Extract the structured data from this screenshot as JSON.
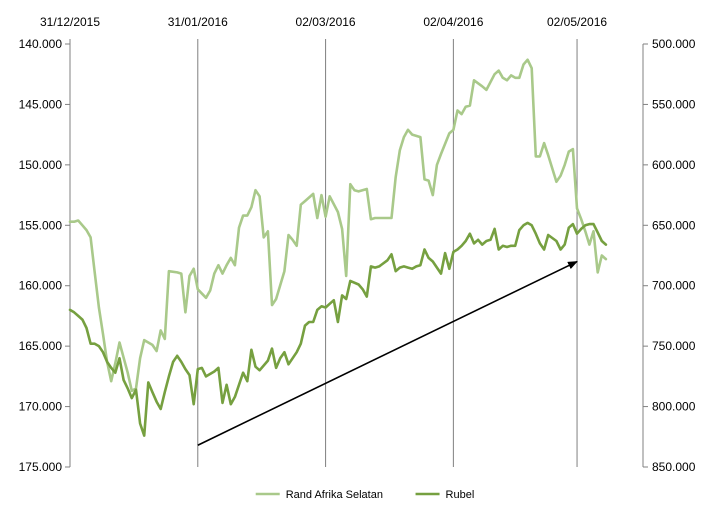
{
  "chart_data": {
    "type": "line",
    "x_tick_labels": [
      "31/12/2015",
      "31/01/2016",
      "02/03/2016",
      "02/04/2016",
      "02/05/2016"
    ],
    "x_ticks": [
      "2015-12-31",
      "2016-01-31",
      "2016-03-02",
      "2016-04-02",
      "2016-05-02"
    ],
    "x_range": [
      "2015-12-31",
      "2016-05-18"
    ],
    "grid": "vertical lines at x ticks",
    "legend_position": "bottom",
    "left_axis": {
      "reversed": true,
      "ylim": [
        140000,
        175000
      ],
      "tick_labels": [
        "140.000",
        "145.000",
        "150.000",
        "155.000",
        "160.000",
        "165.000",
        "170.000",
        "175.000"
      ],
      "tick_values": [
        140000,
        145000,
        150000,
        155000,
        160000,
        165000,
        170000,
        175000
      ]
    },
    "right_axis": {
      "reversed": true,
      "ylim": [
        500000,
        850000
      ],
      "tick_labels": [
        "500.000",
        "550.000",
        "600.000",
        "650.000",
        "700.000",
        "750.000",
        "800.000",
        "850.000"
      ],
      "tick_values": [
        500000,
        550000,
        600000,
        650000,
        700000,
        750000,
        800000,
        850000
      ]
    },
    "series": [
      {
        "name": "Rand Afrika Selatan",
        "axis": "right",
        "color": "#a9c98a",
        "points": [
          [
            "2015-12-31",
            647000
          ],
          [
            "2016-01-01",
            647000
          ],
          [
            "2016-01-02",
            646000
          ],
          [
            "2016-01-03",
            650000
          ],
          [
            "2016-01-04",
            654000
          ],
          [
            "2016-01-05",
            660000
          ],
          [
            "2016-01-06",
            689000
          ],
          [
            "2016-01-07",
            718000
          ],
          [
            "2016-01-08",
            740000
          ],
          [
            "2016-01-09",
            763000
          ],
          [
            "2016-01-10",
            779000
          ],
          [
            "2016-01-11",
            764000
          ],
          [
            "2016-01-12",
            747000
          ],
          [
            "2016-01-14",
            772000
          ],
          [
            "2016-01-15",
            787000
          ],
          [
            "2016-01-16",
            785000
          ],
          [
            "2016-01-17",
            760000
          ],
          [
            "2016-01-18",
            745000
          ],
          [
            "2016-01-20",
            749000
          ],
          [
            "2016-01-21",
            754000
          ],
          [
            "2016-01-22",
            737000
          ],
          [
            "2016-01-23",
            744000
          ],
          [
            "2016-01-24",
            688000
          ],
          [
            "2016-01-26",
            689000
          ],
          [
            "2016-01-27",
            690000
          ],
          [
            "2016-01-28",
            722000
          ],
          [
            "2016-01-29",
            692000
          ],
          [
            "2016-01-30",
            686000
          ],
          [
            "2016-01-31",
            703000
          ],
          [
            "2016-02-02",
            710000
          ],
          [
            "2016-02-03",
            704000
          ],
          [
            "2016-02-04",
            690000
          ],
          [
            "2016-02-05",
            683000
          ],
          [
            "2016-02-06",
            690000
          ],
          [
            "2016-02-07",
            683000
          ],
          [
            "2016-02-08",
            677000
          ],
          [
            "2016-02-09",
            683000
          ],
          [
            "2016-02-10",
            652000
          ],
          [
            "2016-02-11",
            642000
          ],
          [
            "2016-02-12",
            642000
          ],
          [
            "2016-02-13",
            635000
          ],
          [
            "2016-02-14",
            621000
          ],
          [
            "2016-02-15",
            626000
          ],
          [
            "2016-02-16",
            660000
          ],
          [
            "2016-02-17",
            655000
          ],
          [
            "2016-02-18",
            716000
          ],
          [
            "2016-02-19",
            711000
          ],
          [
            "2016-02-21",
            688000
          ],
          [
            "2016-02-22",
            658000
          ],
          [
            "2016-02-23",
            662000
          ],
          [
            "2016-02-24",
            667000
          ],
          [
            "2016-02-25",
            633000
          ],
          [
            "2016-02-26",
            630000
          ],
          [
            "2016-02-28",
            624000
          ],
          [
            "2016-02-29",
            644000
          ],
          [
            "2016-03-01",
            625000
          ],
          [
            "2016-03-02",
            643000
          ],
          [
            "2016-03-03",
            626000
          ],
          [
            "2016-03-05",
            639000
          ],
          [
            "2016-03-06",
            653000
          ],
          [
            "2016-03-07",
            692000
          ],
          [
            "2016-03-08",
            616000
          ],
          [
            "2016-03-09",
            621000
          ],
          [
            "2016-03-10",
            622000
          ],
          [
            "2016-03-12",
            620000
          ],
          [
            "2016-03-13",
            645000
          ],
          [
            "2016-03-14",
            644000
          ],
          [
            "2016-03-18",
            644000
          ],
          [
            "2016-03-19",
            610000
          ],
          [
            "2016-03-20",
            588000
          ],
          [
            "2016-03-21",
            577000
          ],
          [
            "2016-03-22",
            571000
          ],
          [
            "2016-03-23",
            575000
          ],
          [
            "2016-03-25",
            577000
          ],
          [
            "2016-03-26",
            612000
          ],
          [
            "2016-03-27",
            613000
          ],
          [
            "2016-03-28",
            625000
          ],
          [
            "2016-03-29",
            600000
          ],
          [
            "2016-03-30",
            591000
          ],
          [
            "2016-04-01",
            574000
          ],
          [
            "2016-04-02",
            571000
          ],
          [
            "2016-04-03",
            555000
          ],
          [
            "2016-04-04",
            558000
          ],
          [
            "2016-04-05",
            552000
          ],
          [
            "2016-04-06",
            551000
          ],
          [
            "2016-04-07",
            530000
          ],
          [
            "2016-04-09",
            535000
          ],
          [
            "2016-04-10",
            538000
          ],
          [
            "2016-04-12",
            525000
          ],
          [
            "2016-04-13",
            522000
          ],
          [
            "2016-04-14",
            528000
          ],
          [
            "2016-04-15",
            530000
          ],
          [
            "2016-04-16",
            526000
          ],
          [
            "2016-04-17",
            528000
          ],
          [
            "2016-04-18",
            528000
          ],
          [
            "2016-04-19",
            517000
          ],
          [
            "2016-04-20",
            513000
          ],
          [
            "2016-04-21",
            520000
          ],
          [
            "2016-04-22",
            593000
          ],
          [
            "2016-04-23",
            593000
          ],
          [
            "2016-04-24",
            582000
          ],
          [
            "2016-04-25",
            592000
          ],
          [
            "2016-04-26",
            603000
          ],
          [
            "2016-04-27",
            614000
          ],
          [
            "2016-04-28",
            609000
          ],
          [
            "2016-04-29",
            600000
          ],
          [
            "2016-04-30",
            589000
          ],
          [
            "2016-05-01",
            587000
          ],
          [
            "2016-05-02",
            636000
          ],
          [
            "2016-05-03",
            645000
          ],
          [
            "2016-05-04",
            655000
          ],
          [
            "2016-05-05",
            666000
          ],
          [
            "2016-05-06",
            655000
          ],
          [
            "2016-05-07",
            689000
          ],
          [
            "2016-05-08",
            675000
          ],
          [
            "2016-05-09",
            678000
          ]
        ]
      },
      {
        "name": "Rubel",
        "axis": "left",
        "color": "#76a040",
        "points": [
          [
            "2015-12-31",
            162000
          ],
          [
            "2016-01-01",
            162200
          ],
          [
            "2016-01-02",
            162500
          ],
          [
            "2016-01-03",
            162800
          ],
          [
            "2016-01-04",
            163500
          ],
          [
            "2016-01-05",
            164800
          ],
          [
            "2016-01-06",
            164800
          ],
          [
            "2016-01-07",
            165000
          ],
          [
            "2016-01-08",
            165500
          ],
          [
            "2016-01-09",
            166300
          ],
          [
            "2016-01-10",
            166800
          ],
          [
            "2016-01-11",
            167200
          ],
          [
            "2016-01-12",
            166000
          ],
          [
            "2016-01-13",
            167800
          ],
          [
            "2016-01-14",
            168500
          ],
          [
            "2016-01-15",
            169300
          ],
          [
            "2016-01-16",
            168600
          ],
          [
            "2016-01-17",
            171400
          ],
          [
            "2016-01-18",
            172400
          ],
          [
            "2016-01-19",
            168000
          ],
          [
            "2016-01-20",
            168800
          ],
          [
            "2016-01-21",
            169600
          ],
          [
            "2016-01-22",
            170200
          ],
          [
            "2016-01-23",
            168800
          ],
          [
            "2016-01-24",
            167500
          ],
          [
            "2016-01-25",
            166300
          ],
          [
            "2016-01-26",
            165800
          ],
          [
            "2016-01-27",
            166300
          ],
          [
            "2016-01-28",
            166900
          ],
          [
            "2016-01-29",
            167400
          ],
          [
            "2016-01-30",
            169800
          ],
          [
            "2016-01-31",
            166900
          ],
          [
            "2016-02-01",
            166800
          ],
          [
            "2016-02-02",
            167500
          ],
          [
            "2016-02-04",
            167100
          ],
          [
            "2016-02-05",
            166800
          ],
          [
            "2016-02-06",
            169700
          ],
          [
            "2016-02-07",
            168200
          ],
          [
            "2016-02-08",
            169800
          ],
          [
            "2016-02-09",
            169200
          ],
          [
            "2016-02-11",
            167200
          ],
          [
            "2016-02-12",
            167900
          ],
          [
            "2016-02-13",
            165300
          ],
          [
            "2016-02-14",
            166700
          ],
          [
            "2016-02-15",
            167000
          ],
          [
            "2016-02-17",
            166200
          ],
          [
            "2016-02-18",
            165200
          ],
          [
            "2016-02-19",
            166800
          ],
          [
            "2016-02-20",
            166000
          ],
          [
            "2016-02-21",
            165500
          ],
          [
            "2016-02-22",
            166500
          ],
          [
            "2016-02-24",
            165500
          ],
          [
            "2016-02-25",
            164800
          ],
          [
            "2016-02-26",
            163300
          ],
          [
            "2016-02-27",
            163000
          ],
          [
            "2016-02-28",
            163000
          ],
          [
            "2016-02-29",
            162000
          ],
          [
            "2016-03-01",
            161700
          ],
          [
            "2016-03-02",
            161800
          ],
          [
            "2016-03-03",
            161500
          ],
          [
            "2016-03-04",
            161200
          ],
          [
            "2016-03-05",
            163000
          ],
          [
            "2016-03-06",
            160800
          ],
          [
            "2016-03-07",
            161100
          ],
          [
            "2016-03-08",
            159600
          ],
          [
            "2016-03-10",
            159900
          ],
          [
            "2016-03-11",
            160300
          ],
          [
            "2016-03-12",
            160900
          ],
          [
            "2016-03-13",
            158400
          ],
          [
            "2016-03-14",
            158500
          ],
          [
            "2016-03-15",
            158400
          ],
          [
            "2016-03-17",
            157900
          ],
          [
            "2016-03-18",
            157400
          ],
          [
            "2016-03-19",
            158800
          ],
          [
            "2016-03-20",
            158500
          ],
          [
            "2016-03-21",
            158400
          ],
          [
            "2016-03-22",
            158500
          ],
          [
            "2016-03-23",
            158600
          ],
          [
            "2016-03-24",
            158400
          ],
          [
            "2016-03-25",
            158300
          ],
          [
            "2016-03-26",
            157000
          ],
          [
            "2016-03-27",
            157700
          ],
          [
            "2016-03-28",
            158000
          ],
          [
            "2016-03-30",
            159000
          ],
          [
            "2016-03-31",
            157300
          ],
          [
            "2016-04-01",
            158600
          ],
          [
            "2016-04-02",
            157200
          ],
          [
            "2016-04-03",
            157000
          ],
          [
            "2016-04-04",
            156700
          ],
          [
            "2016-04-05",
            156300
          ],
          [
            "2016-04-06",
            155700
          ],
          [
            "2016-04-07",
            156500
          ],
          [
            "2016-04-08",
            156200
          ],
          [
            "2016-04-09",
            156600
          ],
          [
            "2016-04-10",
            156300
          ],
          [
            "2016-04-11",
            156200
          ],
          [
            "2016-04-12",
            155300
          ],
          [
            "2016-04-13",
            157000
          ],
          [
            "2016-04-14",
            156700
          ],
          [
            "2016-04-15",
            156800
          ],
          [
            "2016-04-16",
            156700
          ],
          [
            "2016-04-17",
            156700
          ],
          [
            "2016-04-18",
            155400
          ],
          [
            "2016-04-19",
            155000
          ],
          [
            "2016-04-20",
            154800
          ],
          [
            "2016-04-21",
            155000
          ],
          [
            "2016-04-22",
            155700
          ],
          [
            "2016-04-23",
            156500
          ],
          [
            "2016-04-24",
            157000
          ],
          [
            "2016-04-25",
            155800
          ],
          [
            "2016-04-27",
            156300
          ],
          [
            "2016-04-28",
            157000
          ],
          [
            "2016-04-29",
            156600
          ],
          [
            "2016-04-30",
            155200
          ],
          [
            "2016-05-01",
            154900
          ],
          [
            "2016-05-02",
            155700
          ],
          [
            "2016-05-03",
            155300
          ],
          [
            "2016-05-04",
            155000
          ],
          [
            "2016-05-05",
            154900
          ],
          [
            "2016-05-06",
            154900
          ],
          [
            "2016-05-07",
            155600
          ],
          [
            "2016-05-08",
            156300
          ],
          [
            "2016-05-09",
            156600
          ]
        ]
      }
    ],
    "annotations": [
      {
        "type": "arrow",
        "color": "#000000",
        "from": [
          "2016-01-31",
          173200
        ],
        "to": [
          "2016-05-02",
          158000
        ],
        "axis": "left"
      }
    ]
  }
}
